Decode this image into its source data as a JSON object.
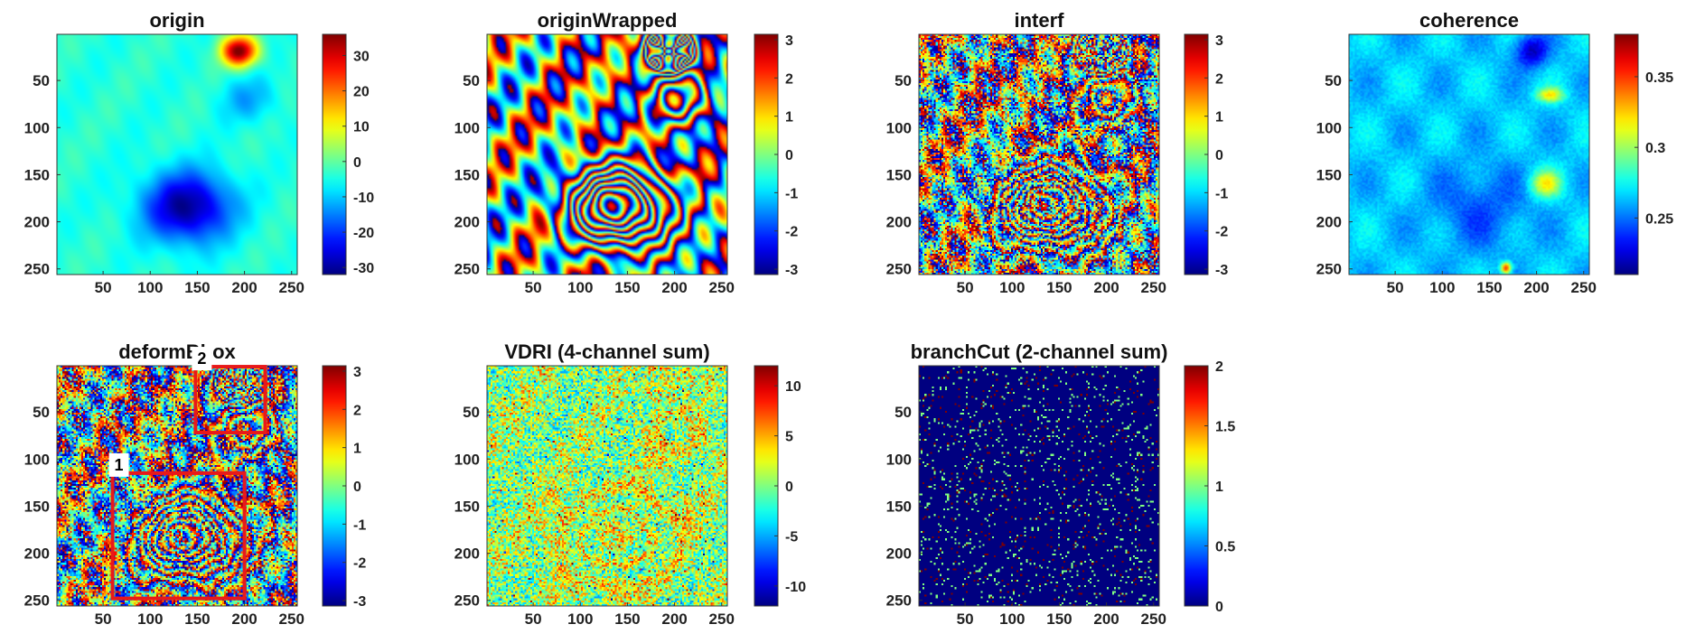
{
  "chart_data": [
    {
      "type": "heatmap",
      "title": "origin",
      "pattern": "smooth",
      "xlim": [
        1,
        256
      ],
      "ylim": [
        1,
        256
      ],
      "xticks": [
        50,
        100,
        150,
        200,
        250
      ],
      "yticks": [
        50,
        100,
        150,
        200,
        250
      ],
      "colormap": "jet",
      "clim": [
        -32,
        36
      ],
      "cbar_ticks": [
        -30,
        -20,
        -10,
        0,
        10,
        20,
        30
      ]
    },
    {
      "type": "heatmap",
      "title": "originWrapped",
      "pattern": "wrapped",
      "xlim": [
        1,
        256
      ],
      "ylim": [
        1,
        256
      ],
      "xticks": [
        50,
        100,
        150,
        200,
        250
      ],
      "yticks": [
        50,
        100,
        150,
        200,
        250
      ],
      "colormap": "jet",
      "clim": [
        -3.14,
        3.14
      ],
      "cbar_ticks": [
        -3,
        -2,
        -1,
        0,
        1,
        2,
        3
      ]
    },
    {
      "type": "heatmap",
      "title": "interf",
      "pattern": "noisy-wrapped",
      "xlim": [
        1,
        256
      ],
      "ylim": [
        1,
        256
      ],
      "xticks": [
        50,
        100,
        150,
        200,
        250
      ],
      "yticks": [
        50,
        100,
        150,
        200,
        250
      ],
      "colormap": "jet",
      "clim": [
        -3.14,
        3.14
      ],
      "cbar_ticks": [
        -3,
        -2,
        -1,
        0,
        1,
        2,
        3
      ]
    },
    {
      "type": "heatmap",
      "title": "coherence",
      "pattern": "coherence",
      "xlim": [
        1,
        256
      ],
      "ylim": [
        1,
        256
      ],
      "xticks": [
        50,
        100,
        150,
        200,
        250
      ],
      "yticks": [
        50,
        100,
        150,
        200,
        250
      ],
      "colormap": "jet",
      "clim": [
        0.21,
        0.38
      ],
      "cbar_ticks": [
        0.25,
        0.3,
        0.35
      ]
    },
    {
      "type": "heatmap",
      "title": "deformBbox",
      "pattern": "noisy-wrapped",
      "xlim": [
        1,
        256
      ],
      "ylim": [
        1,
        256
      ],
      "xticks": [
        50,
        100,
        150,
        200,
        250
      ],
      "yticks": [
        50,
        100,
        150,
        200,
        250
      ],
      "colormap": "jet",
      "clim": [
        -3.14,
        3.14
      ],
      "cbar_ticks": [
        -3,
        -2,
        -1,
        0,
        1,
        2,
        3
      ],
      "boxes": [
        {
          "label": "1",
          "x0": 60,
          "x1": 200,
          "y0": 115,
          "y1": 248,
          "color": "#e8191a"
        },
        {
          "label": "2",
          "x0": 148,
          "x1": 222,
          "y0": 2,
          "y1": 72,
          "color": "#e8191a"
        }
      ]
    },
    {
      "type": "heatmap",
      "title": "VDRI (4-channel sum)",
      "pattern": "vdri",
      "xlim": [
        1,
        256
      ],
      "ylim": [
        1,
        256
      ],
      "xticks": [
        50,
        100,
        150,
        200,
        250
      ],
      "yticks": [
        50,
        100,
        150,
        200,
        250
      ],
      "colormap": "jet",
      "clim": [
        -12,
        12
      ],
      "cbar_ticks": [
        -10,
        -5,
        0,
        5,
        10
      ]
    },
    {
      "type": "heatmap",
      "title": "branchCut (2-channel sum)",
      "pattern": "branchcut",
      "xlim": [
        1,
        256
      ],
      "ylim": [
        1,
        256
      ],
      "xticks": [
        50,
        100,
        150,
        200,
        250
      ],
      "yticks": [
        50,
        100,
        150,
        200,
        250
      ],
      "colormap": "jet",
      "clim": [
        0,
        2
      ],
      "cbar_ticks": [
        0,
        0.5,
        1,
        1.5,
        2
      ]
    }
  ]
}
